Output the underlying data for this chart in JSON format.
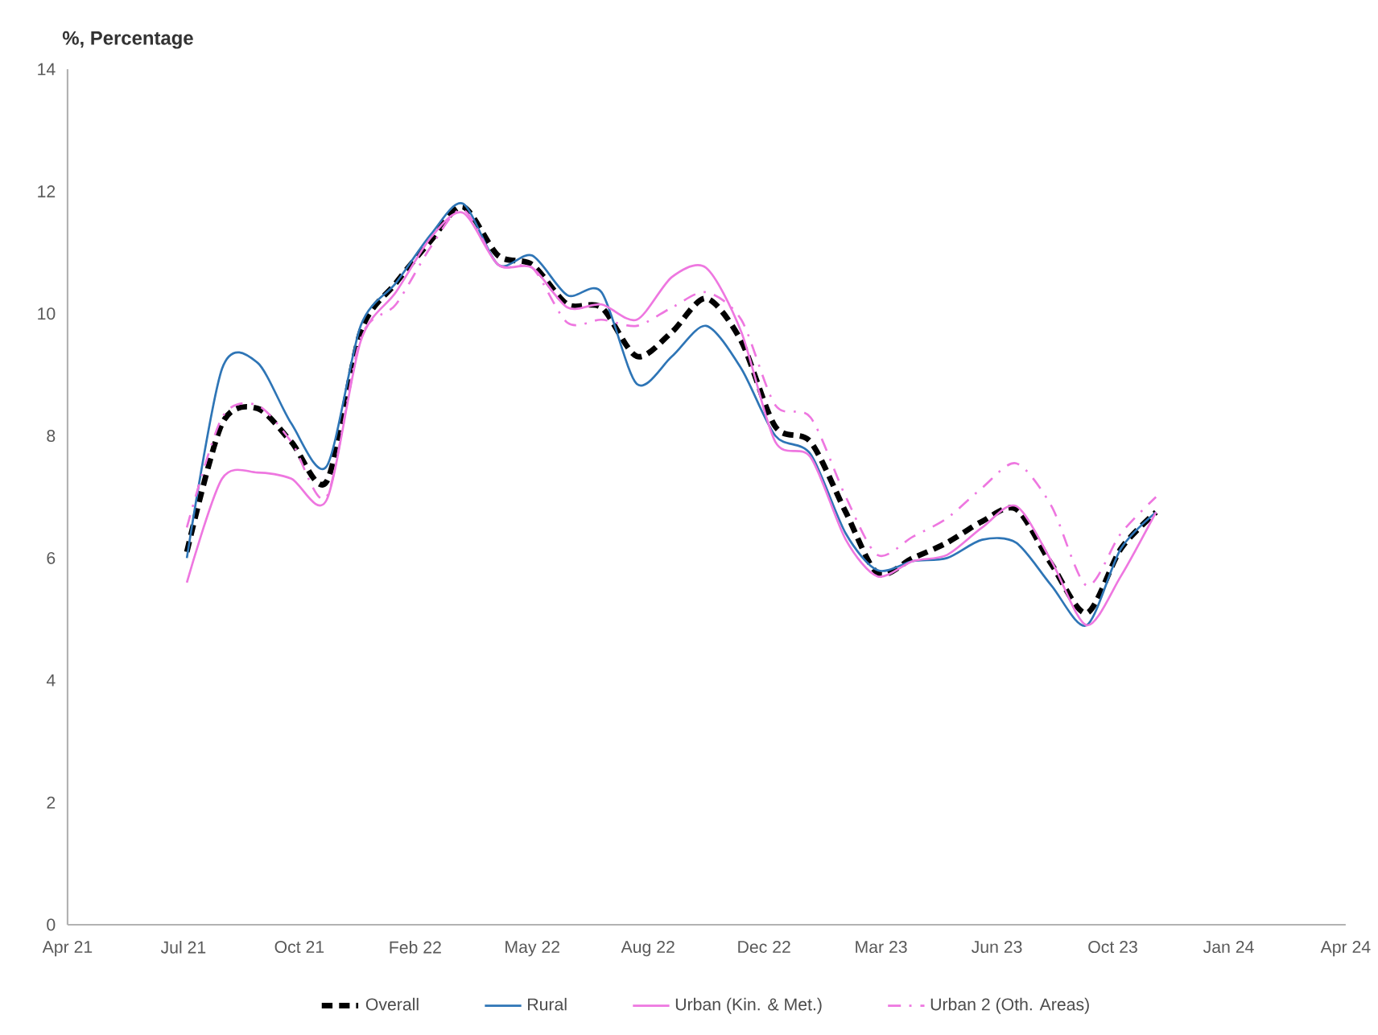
{
  "chart_data": {
    "type": "line",
    "ylabel": "%, Percentage",
    "x": [
      "2021-07-15",
      "2021-08-15",
      "2021-09-15",
      "2021-10-15",
      "2021-11-15",
      "2021-12-15",
      "2022-01-15",
      "2022-02-15",
      "2022-03-15",
      "2022-04-15",
      "2022-05-15",
      "2022-06-15",
      "2022-07-15",
      "2022-08-15",
      "2022-09-15",
      "2022-10-15",
      "2022-11-15",
      "2022-12-15",
      "2023-01-15",
      "2023-02-15",
      "2023-03-15",
      "2023-04-15",
      "2023-05-15",
      "2023-06-15",
      "2023-07-15",
      "2023-08-15",
      "2023-09-15",
      "2023-10-15",
      "2023-11-15"
    ],
    "series": [
      {
        "name": "Overall",
        "color": "#000000",
        "line_style": "dashed",
        "values": [
          6.1,
          8.2,
          8.45,
          7.9,
          7.25,
          9.7,
          10.5,
          11.2,
          11.75,
          10.95,
          10.8,
          10.15,
          10.1,
          9.3,
          9.7,
          10.25,
          9.55,
          8.15,
          7.9,
          6.75,
          5.75,
          6.0,
          6.25,
          6.6,
          6.8,
          5.9,
          5.1,
          6.15,
          6.75
        ]
      },
      {
        "name": "Rural",
        "color": "#2e75b6",
        "line_style": "solid",
        "values": [
          6.0,
          9.1,
          9.2,
          8.2,
          7.5,
          9.8,
          10.5,
          11.3,
          11.8,
          10.8,
          10.95,
          10.3,
          10.35,
          8.85,
          9.3,
          9.8,
          9.1,
          8.0,
          7.7,
          6.4,
          5.8,
          5.95,
          6.0,
          6.3,
          6.25,
          5.55,
          4.9,
          6.15,
          6.75
        ]
      },
      {
        "name": "Urban (Kin. & Met.)",
        "color": "#ee77e0",
        "line_style": "solid",
        "values": [
          5.6,
          7.3,
          7.4,
          7.3,
          6.95,
          9.55,
          10.35,
          11.25,
          11.65,
          10.8,
          10.75,
          10.1,
          10.15,
          9.9,
          10.6,
          10.75,
          9.7,
          7.9,
          7.65,
          6.3,
          5.7,
          5.95,
          6.05,
          6.5,
          6.85,
          5.95,
          4.9,
          5.7,
          6.75
        ]
      },
      {
        "name": "Urban 2 (Oth. Areas)",
        "color": "#ee77e0",
        "line_style": "dashdot",
        "values": [
          6.5,
          8.3,
          8.5,
          7.9,
          7.0,
          9.6,
          10.15,
          11.1,
          11.7,
          10.8,
          10.75,
          9.85,
          9.9,
          9.8,
          10.1,
          10.35,
          9.9,
          8.5,
          8.3,
          7.0,
          6.05,
          6.35,
          6.65,
          7.15,
          7.55,
          6.85,
          5.55,
          6.4,
          7.0
        ]
      }
    ],
    "xlim": [
      "2021-04-01",
      "2024-04-30"
    ],
    "xticks": [
      {
        "value": "2021-04-01",
        "label": "Apr 21"
      },
      {
        "value": "2021-07-12",
        "label": "Jul 21"
      },
      {
        "value": "2021-10-22",
        "label": "Oct 21"
      },
      {
        "value": "2022-02-01",
        "label": "Feb 22"
      },
      {
        "value": "2022-05-15",
        "label": "May 22"
      },
      {
        "value": "2022-08-25",
        "label": "Aug 22"
      },
      {
        "value": "2022-12-05",
        "label": "Dec 22"
      },
      {
        "value": "2023-03-18",
        "label": "Mar 23"
      },
      {
        "value": "2023-06-28",
        "label": "Jun 23"
      },
      {
        "value": "2023-10-08",
        "label": "Oct 23"
      },
      {
        "value": "2024-01-18",
        "label": "Jan 24"
      },
      {
        "value": "2024-04-30",
        "label": "Apr 24"
      }
    ],
    "ylim": [
      0,
      14
    ],
    "yticks": [
      0,
      2,
      4,
      6,
      8,
      10,
      12,
      14
    ],
    "grid": false,
    "legend": "bottom",
    "marker": "none"
  }
}
